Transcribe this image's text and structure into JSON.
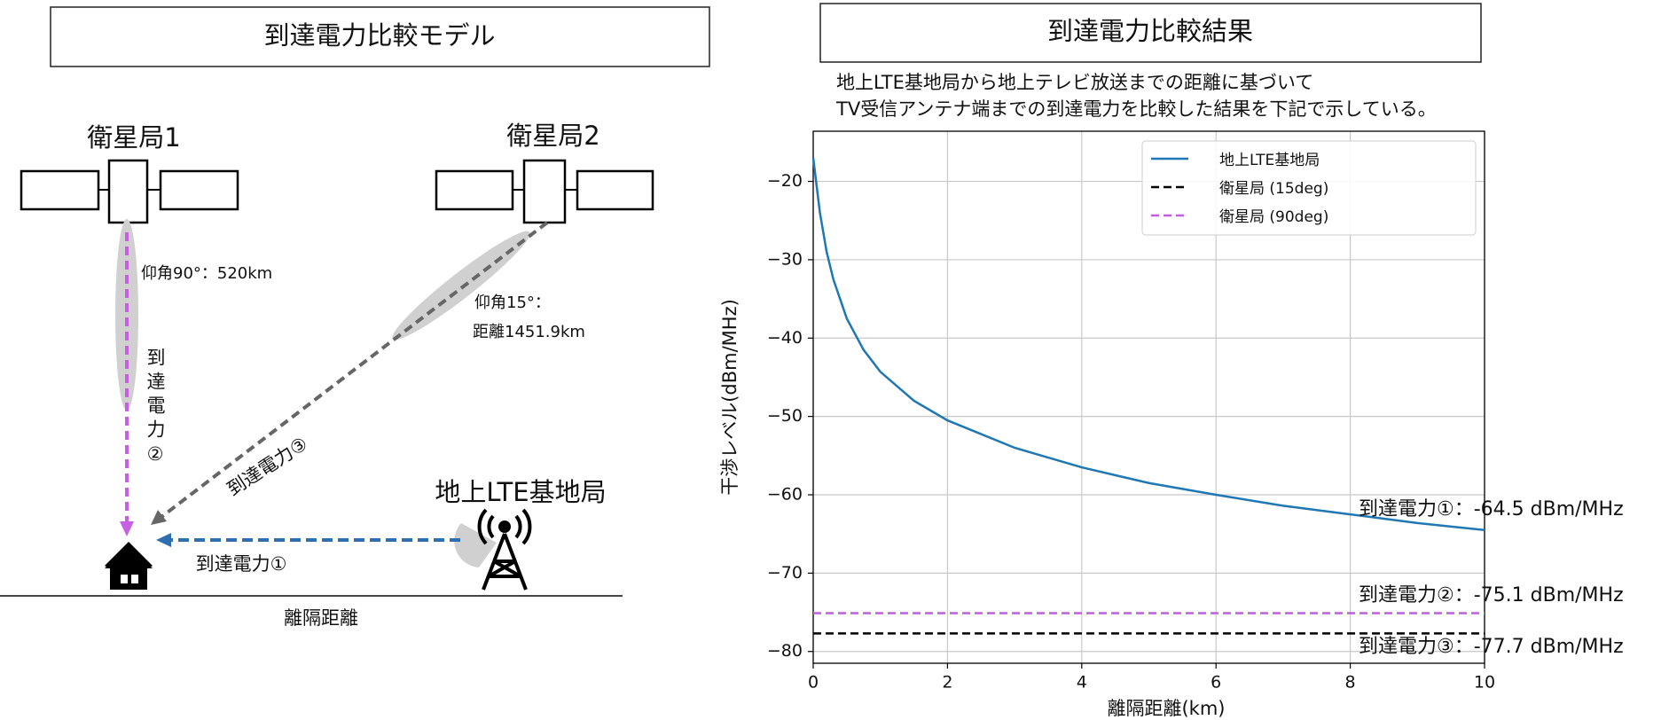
{
  "diagram": {
    "title": "到達電力比較モデル",
    "satellite_1": "衛星局1",
    "satellite_2": "衛星局2",
    "elevation_90": "仰角90°：520km",
    "elevation_15": "仰角15°：",
    "distance_15": "距離1451.9km",
    "power_2": "到達電力②",
    "power_3": "到達電力③",
    "base_station": "地上LTE基地局",
    "power_1": "到達電力①",
    "ground": "離隔距離"
  },
  "chart_data": {
    "type": "line",
    "title": "到達電力比較結果",
    "subtitle": [
      "地上LTE基地局から地上テレビ放送までの距離に基づいて",
      "TV受信アンテナ端までの到達電力を比較した結果を下記で示している。"
    ],
    "xlabel": "離隔距離(km)",
    "ylabel": "干渉レベル(dBm/MHz)",
    "series": [
      {
        "name": "地上LTE基地局",
        "color": "#1f77b4",
        "linestyle": "solid",
        "x": [
          0,
          0.1,
          0.2,
          0.3,
          0.5,
          0.75,
          1,
          1.5,
          2,
          3,
          4,
          5,
          6,
          7,
          8,
          9,
          10
        ],
        "values": [
          -17,
          -24,
          -29,
          -32.5,
          -37.5,
          -41.5,
          -44.3,
          -48,
          -50.5,
          -54,
          -56.5,
          -58.5,
          -60,
          -61.4,
          -62.5,
          -63.6,
          -64.5
        ]
      },
      {
        "name": "衛星局 (15deg)",
        "color": "#000000",
        "linestyle": "dashed",
        "x": [
          0,
          10
        ],
        "values": [
          -77.7,
          -77.7
        ]
      },
      {
        "name": "衛星局 (90deg)",
        "color": "#bf5fdf",
        "linestyle": "dashed",
        "x": [
          0,
          10
        ],
        "values": [
          -75.1,
          -75.1
        ]
      }
    ],
    "xlim": [
      0,
      10
    ],
    "xticks": [
      0,
      2,
      4,
      6,
      8,
      10
    ],
    "ylim": [
      -81.5,
      -13.6
    ],
    "yticks": [
      {
        "value": -80,
        "label": "−80"
      },
      {
        "value": -70,
        "label": "−70"
      },
      {
        "value": -60,
        "label": "−60"
      },
      {
        "value": -50,
        "label": "−50"
      },
      {
        "value": -40,
        "label": "−40"
      },
      {
        "value": -30,
        "label": "−30"
      },
      {
        "value": -20,
        "label": "−20"
      }
    ],
    "grid": true,
    "legend": "upper right",
    "annotations": [
      "到達電力①：-64.5 dBm/MHz",
      "到達電力②：-75.1 dBm/MHz",
      "到達電力③：-77.7 dBm/MHz"
    ]
  }
}
